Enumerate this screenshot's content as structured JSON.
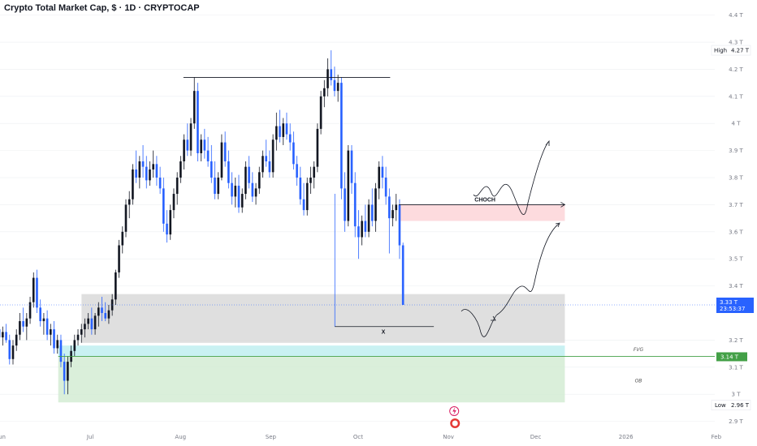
{
  "header": {
    "title": "Crypto Total Market Cap, $ · 1D · CRYPTOCAP"
  },
  "chart_data": {
    "type": "candlestick",
    "ylim": [
      2.8,
      4.45
    ],
    "y_ticks": [
      {
        "v": 4.4,
        "label": "4.4 T"
      },
      {
        "v": 4.3,
        "label": "4.3 T"
      },
      {
        "v": 4.2,
        "label": "4.2 T"
      },
      {
        "v": 4.1,
        "label": "4.1 T"
      },
      {
        "v": 4.0,
        "label": "4 T"
      },
      {
        "v": 3.9,
        "label": "3.9 T"
      },
      {
        "v": 3.8,
        "label": "3.8 T"
      },
      {
        "v": 3.7,
        "label": "3.7 T"
      },
      {
        "v": 3.6,
        "label": "3.6 T"
      },
      {
        "v": 3.5,
        "label": "3.5 T"
      },
      {
        "v": 3.4,
        "label": "3.4 T"
      },
      {
        "v": 3.2,
        "label": "3.2 T"
      },
      {
        "v": 3.1,
        "label": "3.1 T"
      },
      {
        "v": 3.0,
        "label": "3 T"
      },
      {
        "v": 2.9,
        "label": "2.9 T"
      }
    ],
    "x_ticks": [
      "Jun",
      "Jul",
      "Aug",
      "Sep",
      "Oct",
      "Nov",
      "Dec",
      "2026",
      "Feb"
    ],
    "x_tick_days": [
      0,
      31,
      62,
      93,
      123,
      154,
      184,
      215,
      246
    ],
    "x_day_range": [
      0,
      248
    ],
    "high": {
      "label": "High",
      "value": 4.27,
      "value_label": "4.27 T"
    },
    "low": {
      "label": "Low",
      "value": 2.96,
      "value_label": "2.96 T"
    },
    "current_price": {
      "value": 3.33,
      "label": "3.33 T",
      "countdown": "23:53:37"
    },
    "fvg_level": {
      "value": 3.14,
      "label": "3.14 T"
    },
    "colors": {
      "up": "#131722",
      "down": "#2962ff",
      "grid": "#eceff2",
      "hl": "#787b86"
    },
    "annotations": {
      "choch": "CHOCH",
      "x": "X",
      "fvg": "FVG",
      "ob": "OB",
      "choch_level": 3.7,
      "resistance_level": 4.17,
      "sweep_level": 3.25,
      "zones": [
        {
          "name": "demand-zone",
          "from": 3.19,
          "to": 3.37,
          "color": "#d9d9d9",
          "start_day": 28,
          "end_day": 194
        },
        {
          "name": "fvg-zone",
          "from": 3.14,
          "to": 3.18,
          "color": "#bfeff0",
          "start_day": 20,
          "end_day": 194
        },
        {
          "name": "ob-zone",
          "from": 2.97,
          "to": 3.14,
          "color": "#d3ecd3",
          "start_day": 20,
          "end_day": 194
        },
        {
          "name": "supply-zone",
          "from": 3.64,
          "to": 3.7,
          "color": "#fdd5d8",
          "start_day": 137,
          "end_day": 194
        }
      ]
    },
    "candles": [
      {
        "o": 3.22,
        "h": 3.27,
        "l": 3.19,
        "c": 3.24
      },
      {
        "o": 3.24,
        "h": 3.28,
        "l": 3.2,
        "c": 3.21
      },
      {
        "o": 3.21,
        "h": 3.25,
        "l": 3.18,
        "c": 3.23
      },
      {
        "o": 3.23,
        "h": 3.26,
        "l": 3.19,
        "c": 3.2
      },
      {
        "o": 3.2,
        "h": 3.22,
        "l": 3.11,
        "c": 3.13
      },
      {
        "o": 3.13,
        "h": 3.2,
        "l": 3.11,
        "c": 3.18
      },
      {
        "o": 3.18,
        "h": 3.24,
        "l": 3.16,
        "c": 3.22
      },
      {
        "o": 3.22,
        "h": 3.3,
        "l": 3.2,
        "c": 3.27
      },
      {
        "o": 3.27,
        "h": 3.32,
        "l": 3.23,
        "c": 3.25
      },
      {
        "o": 3.25,
        "h": 3.3,
        "l": 3.2,
        "c": 3.28
      },
      {
        "o": 3.28,
        "h": 3.36,
        "l": 3.26,
        "c": 3.34
      },
      {
        "o": 3.34,
        "h": 3.45,
        "l": 3.32,
        "c": 3.43
      },
      {
        "o": 3.43,
        "h": 3.46,
        "l": 3.3,
        "c": 3.32
      },
      {
        "o": 3.32,
        "h": 3.35,
        "l": 3.25,
        "c": 3.27
      },
      {
        "o": 3.27,
        "h": 3.3,
        "l": 3.22,
        "c": 3.28
      },
      {
        "o": 3.28,
        "h": 3.31,
        "l": 3.2,
        "c": 3.22
      },
      {
        "o": 3.22,
        "h": 3.26,
        "l": 3.18,
        "c": 3.24
      },
      {
        "o": 3.24,
        "h": 3.27,
        "l": 3.15,
        "c": 3.17
      },
      {
        "o": 3.17,
        "h": 3.22,
        "l": 3.15,
        "c": 3.2
      },
      {
        "o": 3.2,
        "h": 3.22,
        "l": 3.1,
        "c": 3.12
      },
      {
        "o": 3.12,
        "h": 3.15,
        "l": 3.0,
        "c": 3.05
      },
      {
        "o": 3.05,
        "h": 3.14,
        "l": 3.0,
        "c": 3.12
      },
      {
        "o": 3.12,
        "h": 3.18,
        "l": 3.1,
        "c": 3.16
      },
      {
        "o": 3.16,
        "h": 3.22,
        "l": 3.14,
        "c": 3.2
      },
      {
        "o": 3.2,
        "h": 3.24,
        "l": 3.18,
        "c": 3.22
      },
      {
        "o": 3.22,
        "h": 3.26,
        "l": 3.19,
        "c": 3.24
      },
      {
        "o": 3.24,
        "h": 3.28,
        "l": 3.21,
        "c": 3.26
      },
      {
        "o": 3.26,
        "h": 3.3,
        "l": 3.24,
        "c": 3.28
      },
      {
        "o": 3.28,
        "h": 3.32,
        "l": 3.22,
        "c": 3.24
      },
      {
        "o": 3.24,
        "h": 3.3,
        "l": 3.22,
        "c": 3.29
      },
      {
        "o": 3.29,
        "h": 3.34,
        "l": 3.25,
        "c": 3.32
      },
      {
        "o": 3.32,
        "h": 3.36,
        "l": 3.27,
        "c": 3.3
      },
      {
        "o": 3.3,
        "h": 3.34,
        "l": 3.27,
        "c": 3.28
      },
      {
        "o": 3.28,
        "h": 3.33,
        "l": 3.26,
        "c": 3.31
      },
      {
        "o": 3.31,
        "h": 3.37,
        "l": 3.29,
        "c": 3.35
      },
      {
        "o": 3.35,
        "h": 3.46,
        "l": 3.33,
        "c": 3.45
      },
      {
        "o": 3.45,
        "h": 3.57,
        "l": 3.43,
        "c": 3.55
      },
      {
        "o": 3.55,
        "h": 3.62,
        "l": 3.52,
        "c": 3.6
      },
      {
        "o": 3.6,
        "h": 3.72,
        "l": 3.58,
        "c": 3.7
      },
      {
        "o": 3.7,
        "h": 3.75,
        "l": 3.65,
        "c": 3.72
      },
      {
        "o": 3.72,
        "h": 3.85,
        "l": 3.7,
        "c": 3.83
      },
      {
        "o": 3.83,
        "h": 3.9,
        "l": 3.78,
        "c": 3.8
      },
      {
        "o": 3.8,
        "h": 3.88,
        "l": 3.76,
        "c": 3.86
      },
      {
        "o": 3.86,
        "h": 3.92,
        "l": 3.8,
        "c": 3.84
      },
      {
        "o": 3.84,
        "h": 3.88,
        "l": 3.76,
        "c": 3.79
      },
      {
        "o": 3.79,
        "h": 3.86,
        "l": 3.77,
        "c": 3.83
      },
      {
        "o": 3.83,
        "h": 3.9,
        "l": 3.8,
        "c": 3.85
      },
      {
        "o": 3.85,
        "h": 3.88,
        "l": 3.77,
        "c": 3.8
      },
      {
        "o": 3.8,
        "h": 3.84,
        "l": 3.74,
        "c": 3.76
      },
      {
        "o": 3.76,
        "h": 3.8,
        "l": 3.6,
        "c": 3.63
      },
      {
        "o": 3.63,
        "h": 3.68,
        "l": 3.56,
        "c": 3.59
      },
      {
        "o": 3.59,
        "h": 3.7,
        "l": 3.57,
        "c": 3.68
      },
      {
        "o": 3.68,
        "h": 3.76,
        "l": 3.65,
        "c": 3.74
      },
      {
        "o": 3.74,
        "h": 3.82,
        "l": 3.7,
        "c": 3.8
      },
      {
        "o": 3.8,
        "h": 3.88,
        "l": 3.78,
        "c": 3.86
      },
      {
        "o": 3.86,
        "h": 3.96,
        "l": 3.83,
        "c": 3.94
      },
      {
        "o": 3.94,
        "h": 4.0,
        "l": 3.88,
        "c": 3.9
      },
      {
        "o": 3.9,
        "h": 4.02,
        "l": 3.88,
        "c": 4.0
      },
      {
        "o": 4.0,
        "h": 4.17,
        "l": 3.98,
        "c": 4.12
      },
      {
        "o": 4.12,
        "h": 4.15,
        "l": 3.86,
        "c": 3.89
      },
      {
        "o": 3.89,
        "h": 3.96,
        "l": 3.86,
        "c": 3.94
      },
      {
        "o": 3.94,
        "h": 3.98,
        "l": 3.87,
        "c": 3.9
      },
      {
        "o": 3.9,
        "h": 3.95,
        "l": 3.84,
        "c": 3.86
      },
      {
        "o": 3.86,
        "h": 3.92,
        "l": 3.78,
        "c": 3.8
      },
      {
        "o": 3.8,
        "h": 3.86,
        "l": 3.72,
        "c": 3.74
      },
      {
        "o": 3.74,
        "h": 3.82,
        "l": 3.72,
        "c": 3.8
      },
      {
        "o": 3.8,
        "h": 3.96,
        "l": 3.79,
        "c": 3.93
      },
      {
        "o": 3.93,
        "h": 3.97,
        "l": 3.84,
        "c": 3.86
      },
      {
        "o": 3.86,
        "h": 3.9,
        "l": 3.76,
        "c": 3.78
      },
      {
        "o": 3.78,
        "h": 3.82,
        "l": 3.7,
        "c": 3.73
      },
      {
        "o": 3.73,
        "h": 3.8,
        "l": 3.69,
        "c": 3.77
      },
      {
        "o": 3.77,
        "h": 3.81,
        "l": 3.67,
        "c": 3.69
      },
      {
        "o": 3.69,
        "h": 3.76,
        "l": 3.67,
        "c": 3.74
      },
      {
        "o": 3.74,
        "h": 3.86,
        "l": 3.72,
        "c": 3.84
      },
      {
        "o": 3.84,
        "h": 3.88,
        "l": 3.76,
        "c": 3.78
      },
      {
        "o": 3.78,
        "h": 3.82,
        "l": 3.71,
        "c": 3.73
      },
      {
        "o": 3.73,
        "h": 3.78,
        "l": 3.7,
        "c": 3.76
      },
      {
        "o": 3.76,
        "h": 3.84,
        "l": 3.74,
        "c": 3.82
      },
      {
        "o": 3.82,
        "h": 3.9,
        "l": 3.8,
        "c": 3.88
      },
      {
        "o": 3.88,
        "h": 3.94,
        "l": 3.84,
        "c": 3.86
      },
      {
        "o": 3.86,
        "h": 3.9,
        "l": 3.8,
        "c": 3.82
      },
      {
        "o": 3.82,
        "h": 3.96,
        "l": 3.8,
        "c": 3.94
      },
      {
        "o": 3.94,
        "h": 4.04,
        "l": 3.9,
        "c": 3.99
      },
      {
        "o": 3.99,
        "h": 4.05,
        "l": 3.93,
        "c": 3.95
      },
      {
        "o": 3.95,
        "h": 4.02,
        "l": 3.92,
        "c": 4.0
      },
      {
        "o": 4.0,
        "h": 4.04,
        "l": 3.94,
        "c": 3.96
      },
      {
        "o": 3.96,
        "h": 4.0,
        "l": 3.9,
        "c": 3.93
      },
      {
        "o": 3.93,
        "h": 3.97,
        "l": 3.83,
        "c": 3.85
      },
      {
        "o": 3.85,
        "h": 3.88,
        "l": 3.77,
        "c": 3.8
      },
      {
        "o": 3.8,
        "h": 3.84,
        "l": 3.7,
        "c": 3.72
      },
      {
        "o": 3.72,
        "h": 3.78,
        "l": 3.66,
        "c": 3.68
      },
      {
        "o": 3.68,
        "h": 3.8,
        "l": 3.66,
        "c": 3.78
      },
      {
        "o": 3.78,
        "h": 3.84,
        "l": 3.74,
        "c": 3.8
      },
      {
        "o": 3.8,
        "h": 3.86,
        "l": 3.76,
        "c": 3.84
      },
      {
        "o": 3.84,
        "h": 4.0,
        "l": 3.82,
        "c": 3.98
      },
      {
        "o": 3.98,
        "h": 4.12,
        "l": 3.96,
        "c": 4.1
      },
      {
        "o": 4.1,
        "h": 4.16,
        "l": 4.06,
        "c": 4.13
      },
      {
        "o": 4.13,
        "h": 4.24,
        "l": 4.1,
        "c": 4.2
      },
      {
        "o": 4.2,
        "h": 4.27,
        "l": 4.14,
        "c": 4.16
      },
      {
        "o": 4.16,
        "h": 4.21,
        "l": 4.1,
        "c": 4.12
      },
      {
        "o": 4.12,
        "h": 4.18,
        "l": 4.08,
        "c": 4.15
      },
      {
        "o": 4.15,
        "h": 4.17,
        "l": 3.72,
        "c": 3.76
      },
      {
        "o": 3.76,
        "h": 3.82,
        "l": 3.6,
        "c": 3.64
      },
      {
        "o": 3.64,
        "h": 3.92,
        "l": 3.62,
        "c": 3.9
      },
      {
        "o": 3.9,
        "h": 3.92,
        "l": 3.74,
        "c": 3.78
      },
      {
        "o": 3.78,
        "h": 3.82,
        "l": 3.58,
        "c": 3.62
      },
      {
        "o": 3.62,
        "h": 3.68,
        "l": 3.5,
        "c": 3.58
      },
      {
        "o": 3.58,
        "h": 3.66,
        "l": 3.55,
        "c": 3.64
      },
      {
        "o": 3.64,
        "h": 3.7,
        "l": 3.58,
        "c": 3.6
      },
      {
        "o": 3.6,
        "h": 3.72,
        "l": 3.58,
        "c": 3.7
      },
      {
        "o": 3.7,
        "h": 3.76,
        "l": 3.62,
        "c": 3.64
      },
      {
        "o": 3.64,
        "h": 3.78,
        "l": 3.6,
        "c": 3.76
      },
      {
        "o": 3.76,
        "h": 3.86,
        "l": 3.72,
        "c": 3.84
      },
      {
        "o": 3.84,
        "h": 3.88,
        "l": 3.76,
        "c": 3.8
      },
      {
        "o": 3.8,
        "h": 3.84,
        "l": 3.7,
        "c": 3.73
      },
      {
        "o": 3.73,
        "h": 3.76,
        "l": 3.52,
        "c": 3.65
      },
      {
        "o": 3.65,
        "h": 3.7,
        "l": 3.62,
        "c": 3.68
      },
      {
        "o": 3.68,
        "h": 3.74,
        "l": 3.64,
        "c": 3.7
      },
      {
        "o": 3.7,
        "h": 3.72,
        "l": 3.5,
        "c": 3.55
      },
      {
        "o": 3.55,
        "h": 3.56,
        "l": 3.33,
        "c": 3.33
      }
    ]
  }
}
